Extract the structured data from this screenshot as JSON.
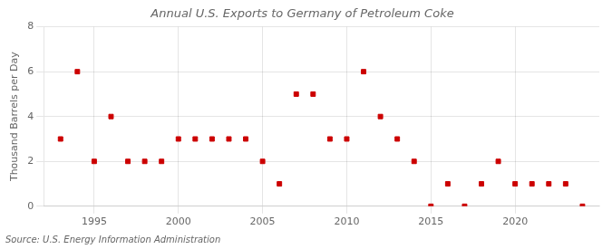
{
  "chart_data": {
    "type": "scatter",
    "title": "Annual U.S. Exports to Germany of Petroleum Coke",
    "ylabel": "Thousand Barrels per Day",
    "source": "Source: U.S. Energy Information Administration",
    "x": [
      1993,
      1994,
      1995,
      1996,
      1997,
      1998,
      1999,
      2000,
      2001,
      2002,
      2003,
      2004,
      2005,
      2006,
      2007,
      2008,
      2009,
      2010,
      2011,
      2012,
      2013,
      2014,
      2015,
      2016,
      2017,
      2018,
      2019,
      2020,
      2021,
      2022,
      2023,
      2024
    ],
    "values": [
      3,
      6,
      2,
      4,
      2,
      2,
      2,
      3,
      3,
      3,
      3,
      3,
      2,
      1,
      5,
      5,
      3,
      3,
      6,
      4,
      3,
      2,
      0,
      1,
      0,
      1,
      2,
      1,
      1,
      1,
      1,
      0
    ],
    "color": "#cc0000",
    "marker": "square",
    "xlim": [
      1992,
      2025
    ],
    "xticks": [
      1995,
      2000,
      2005,
      2010,
      2015,
      2020
    ],
    "ylim": [
      0,
      8
    ],
    "yticks": [
      0,
      2,
      4,
      6,
      8
    ],
    "grid": true
  }
}
